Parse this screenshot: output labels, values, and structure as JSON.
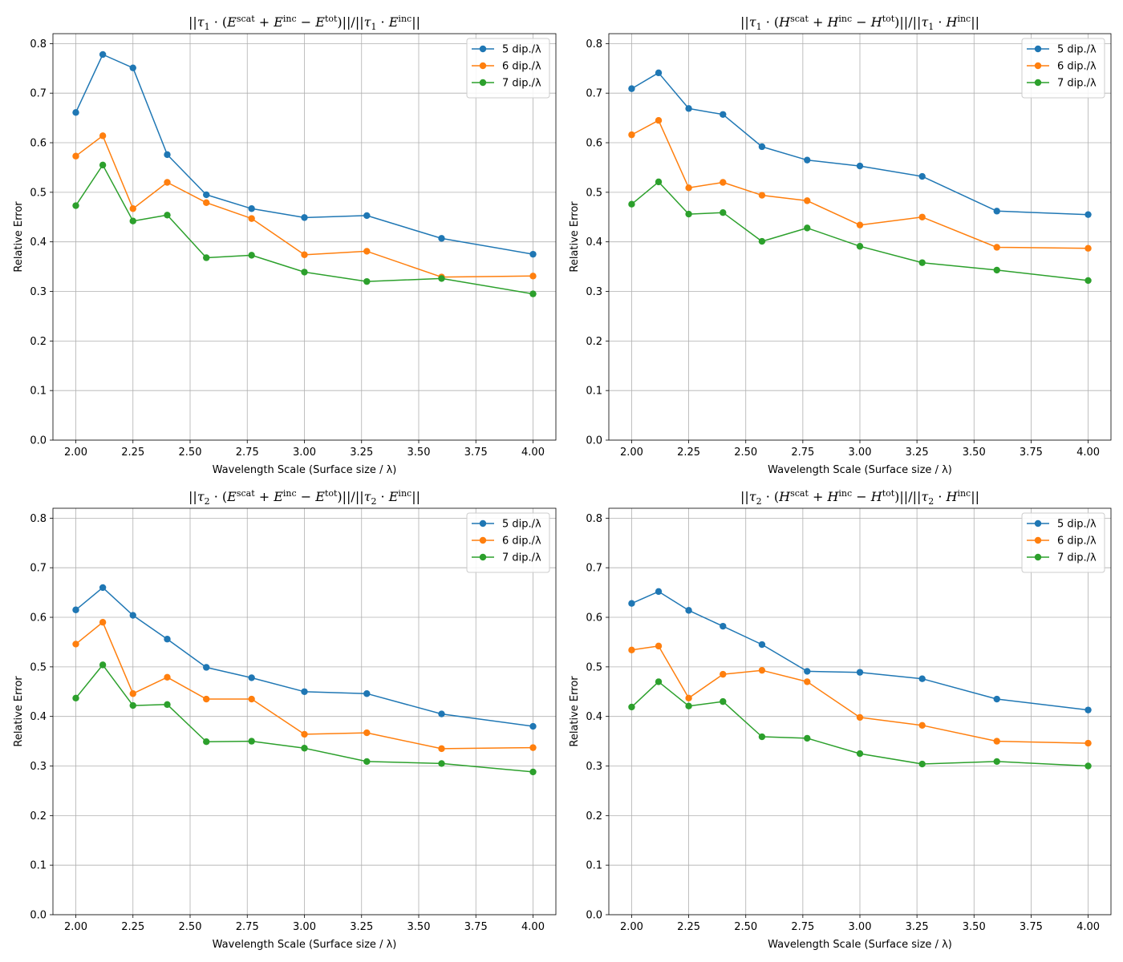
{
  "chart_data": [
    {
      "type": "line",
      "title_parts": {
        "prefix": "||",
        "tau": "τ",
        "sub": "1",
        "field": "E"
      },
      "xlabel": "Wavelength Scale (Surface size / λ)",
      "ylabel": "Relative Error",
      "xlim": [
        1.9,
        4.1
      ],
      "ylim": [
        0,
        0.82
      ],
      "xticks": [
        "2.00",
        "2.25",
        "2.50",
        "2.75",
        "3.00",
        "3.25",
        "3.50",
        "3.75",
        "4.00"
      ],
      "yticks": [
        "0.0",
        "0.1",
        "0.2",
        "0.3",
        "0.4",
        "0.5",
        "0.6",
        "0.7",
        "0.8"
      ],
      "grid": true,
      "legend": "top-right",
      "x": [
        2.0,
        2.118,
        2.25,
        2.4,
        2.571,
        2.769,
        3.0,
        3.273,
        3.6,
        4.0
      ],
      "series": [
        {
          "name": "5 dip./λ",
          "color": "#1f77b4",
          "values": [
            0.661,
            0.778,
            0.751,
            0.576,
            0.495,
            0.467,
            0.449,
            0.453,
            0.407,
            0.375
          ]
        },
        {
          "name": "6 dip./λ",
          "color": "#ff7f0e",
          "values": [
            0.573,
            0.614,
            0.467,
            0.52,
            0.479,
            0.447,
            0.374,
            0.381,
            0.329,
            0.331
          ]
        },
        {
          "name": "7 dip./λ",
          "color": "#2ca02c",
          "values": [
            0.473,
            0.555,
            0.442,
            0.454,
            0.368,
            0.373,
            0.339,
            0.32,
            0.326,
            0.295
          ]
        }
      ]
    },
    {
      "type": "line",
      "title_parts": {
        "prefix": "||",
        "tau": "τ",
        "sub": "1",
        "field": "H"
      },
      "xlabel": "Wavelength Scale (Surface size / λ)",
      "ylabel": "Relative Error",
      "xlim": [
        1.9,
        4.1
      ],
      "ylim": [
        0,
        0.82
      ],
      "xticks": [
        "2.00",
        "2.25",
        "2.50",
        "2.75",
        "3.00",
        "3.25",
        "3.50",
        "3.75",
        "4.00"
      ],
      "yticks": [
        "0.0",
        "0.1",
        "0.2",
        "0.3",
        "0.4",
        "0.5",
        "0.6",
        "0.7",
        "0.8"
      ],
      "grid": true,
      "legend": "top-right",
      "x": [
        2.0,
        2.118,
        2.25,
        2.4,
        2.571,
        2.769,
        3.0,
        3.273,
        3.6,
        4.0
      ],
      "series": [
        {
          "name": "5 dip./λ",
          "color": "#1f77b4",
          "values": [
            0.709,
            0.741,
            0.669,
            0.657,
            0.592,
            0.565,
            0.553,
            0.532,
            0.462,
            0.455
          ]
        },
        {
          "name": "6 dip./λ",
          "color": "#ff7f0e",
          "values": [
            0.616,
            0.645,
            0.509,
            0.52,
            0.494,
            0.483,
            0.434,
            0.45,
            0.389,
            0.387
          ]
        },
        {
          "name": "7 dip./λ",
          "color": "#2ca02c",
          "values": [
            0.476,
            0.521,
            0.456,
            0.459,
            0.401,
            0.428,
            0.391,
            0.358,
            0.343,
            0.322
          ]
        }
      ]
    },
    {
      "type": "line",
      "title_parts": {
        "prefix": "||",
        "tau": "τ",
        "sub": "2",
        "field": "E"
      },
      "xlabel": "Wavelength Scale (Surface size / λ)",
      "ylabel": "Relative Error",
      "xlim": [
        1.9,
        4.1
      ],
      "ylim": [
        0,
        0.82
      ],
      "xticks": [
        "2.00",
        "2.25",
        "2.50",
        "2.75",
        "3.00",
        "3.25",
        "3.50",
        "3.75",
        "4.00"
      ],
      "yticks": [
        "0.0",
        "0.1",
        "0.2",
        "0.3",
        "0.4",
        "0.5",
        "0.6",
        "0.7",
        "0.8"
      ],
      "grid": true,
      "legend": "top-right",
      "x": [
        2.0,
        2.118,
        2.25,
        2.4,
        2.571,
        2.769,
        3.0,
        3.273,
        3.6,
        4.0
      ],
      "series": [
        {
          "name": "5 dip./λ",
          "color": "#1f77b4",
          "values": [
            0.615,
            0.66,
            0.604,
            0.556,
            0.499,
            0.478,
            0.45,
            0.446,
            0.405,
            0.38
          ]
        },
        {
          "name": "6 dip./λ",
          "color": "#ff7f0e",
          "values": [
            0.546,
            0.59,
            0.446,
            0.479,
            0.435,
            0.435,
            0.364,
            0.367,
            0.335,
            0.337
          ]
        },
        {
          "name": "7 dip./λ",
          "color": "#2ca02c",
          "values": [
            0.437,
            0.504,
            0.422,
            0.424,
            0.349,
            0.35,
            0.336,
            0.309,
            0.305,
            0.288
          ]
        }
      ]
    },
    {
      "type": "line",
      "title_parts": {
        "prefix": "||",
        "tau": "τ",
        "sub": "2",
        "field": "H"
      },
      "xlabel": "Wavelength Scale (Surface size / λ)",
      "ylabel": "Relative Error",
      "xlim": [
        1.9,
        4.1
      ],
      "ylim": [
        0,
        0.82
      ],
      "xticks": [
        "2.00",
        "2.25",
        "2.50",
        "2.75",
        "3.00",
        "3.25",
        "3.50",
        "3.75",
        "4.00"
      ],
      "yticks": [
        "0.0",
        "0.1",
        "0.2",
        "0.3",
        "0.4",
        "0.5",
        "0.6",
        "0.7",
        "0.8"
      ],
      "grid": true,
      "legend": "top-right",
      "x": [
        2.0,
        2.118,
        2.25,
        2.4,
        2.571,
        2.769,
        3.0,
        3.273,
        3.6,
        4.0
      ],
      "series": [
        {
          "name": "5 dip./λ",
          "color": "#1f77b4",
          "values": [
            0.628,
            0.652,
            0.614,
            0.582,
            0.545,
            0.491,
            0.489,
            0.476,
            0.435,
            0.413
          ]
        },
        {
          "name": "6 dip./λ",
          "color": "#ff7f0e",
          "values": [
            0.534,
            0.542,
            0.437,
            0.485,
            0.493,
            0.47,
            0.398,
            0.382,
            0.35,
            0.346
          ]
        },
        {
          "name": "7 dip./λ",
          "color": "#2ca02c",
          "values": [
            0.419,
            0.47,
            0.421,
            0.43,
            0.359,
            0.356,
            0.325,
            0.304,
            0.309,
            0.3
          ]
        }
      ]
    }
  ]
}
